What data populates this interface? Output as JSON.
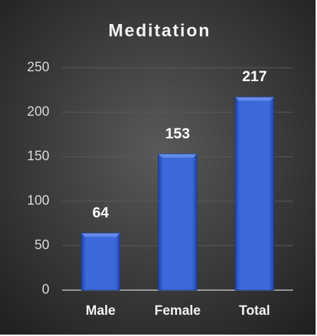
{
  "chart_data": {
    "type": "bar",
    "title": "Meditation",
    "categories": [
      "Male",
      "Female",
      "Total"
    ],
    "values": [
      64,
      153,
      217
    ],
    "color": "#3a66d4",
    "ylim": [
      0,
      250
    ],
    "yticks": [
      0,
      50,
      100,
      150,
      200,
      250
    ],
    "grid": true
  }
}
